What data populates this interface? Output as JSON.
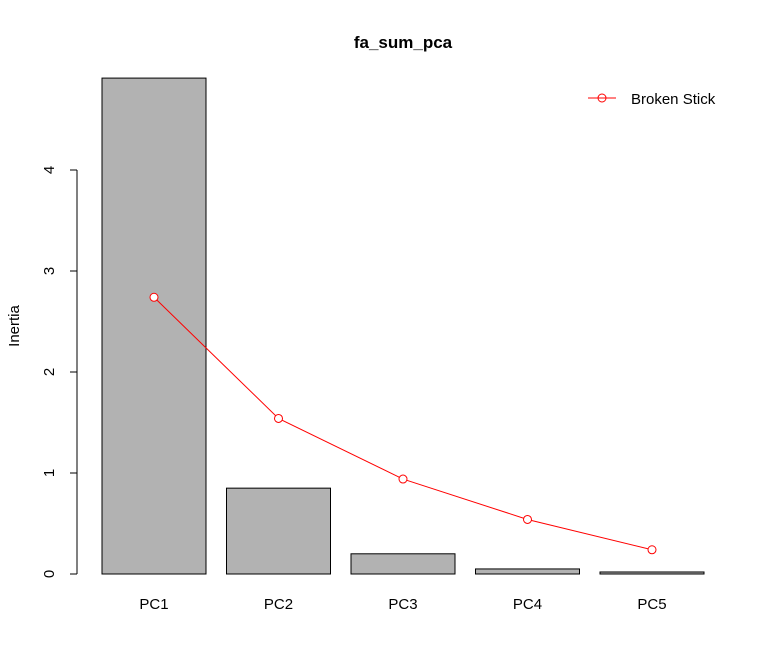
{
  "chart_data": {
    "type": "bar",
    "title": "fa_sum_pca",
    "xlabel": "",
    "ylabel": "Inertia",
    "categories": [
      "PC1",
      "PC2",
      "PC3",
      "PC4",
      "PC5"
    ],
    "series": [
      {
        "type": "bar",
        "values": [
          4.91,
          0.85,
          0.2,
          0.05,
          0.02
        ]
      },
      {
        "type": "line",
        "name": "Broken Stick",
        "values": [
          2.74,
          1.54,
          0.94,
          0.54,
          0.24
        ]
      }
    ],
    "yticks": [
      "0",
      "1",
      "2",
      "3",
      "4"
    ],
    "ylim": [
      0,
      4.91
    ],
    "grid": false,
    "legend_position": "top-right",
    "colors": {
      "bar_fill": "#b2b2b2",
      "bar_stroke": "#000000",
      "line": "#ff0000"
    }
  }
}
